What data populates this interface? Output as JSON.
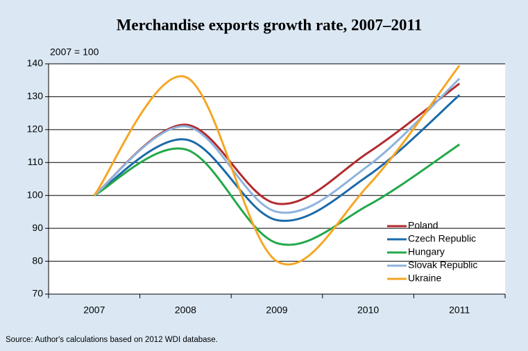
{
  "chart_data": {
    "type": "line",
    "title": "Merchandise exports growth rate, 2007–2011",
    "y_label": "2007 = 100",
    "source": "Source: Author's calculations based on 2012 WDI database.",
    "categories": [
      "2007",
      "2008",
      "2009",
      "2010",
      "2011"
    ],
    "series": [
      {
        "name": "Poland",
        "color": "#b22a2e",
        "values": [
          100,
          121.5,
          97.5,
          113,
          134
        ]
      },
      {
        "name": "Czech Republic",
        "color": "#1a6aa8",
        "values": [
          100,
          117,
          92.5,
          106,
          130.5
        ]
      },
      {
        "name": "Hungary",
        "color": "#22a84a",
        "values": [
          100,
          114,
          85.5,
          97,
          115.5
        ]
      },
      {
        "name": "Slovak Republic",
        "color": "#8db3dc",
        "values": [
          100,
          121,
          95,
          109,
          135.5
        ]
      },
      {
        "name": "Ukraine",
        "color": "#f5a623",
        "values": [
          100,
          136,
          80,
          103,
          139.5
        ]
      }
    ],
    "ylim": [
      70,
      140
    ],
    "yticks": [
      70,
      80,
      90,
      100,
      110,
      120,
      130,
      140
    ],
    "grid": true,
    "smooth": true,
    "legend": "lower right"
  }
}
